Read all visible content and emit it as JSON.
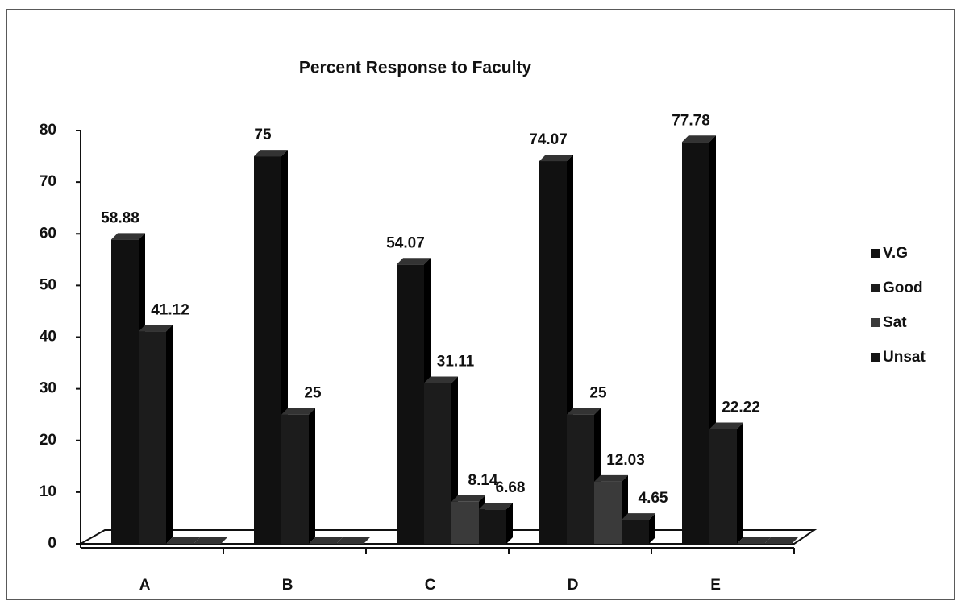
{
  "chart_data": {
    "type": "bar",
    "title": "Percent Response to Faculty",
    "categories": [
      "A",
      "B",
      "C",
      "D",
      "E"
    ],
    "series": [
      {
        "name": "V.G",
        "color": "#111111",
        "values": [
          58.88,
          75,
          54.07,
          74.07,
          77.78
        ]
      },
      {
        "name": "Good",
        "color": "#1c1c1c",
        "values": [
          41.12,
          25,
          31.11,
          25,
          22.22
        ]
      },
      {
        "name": "Sat",
        "color": "#3a3a3a",
        "values": [
          0,
          0,
          8.14,
          12.03,
          0
        ]
      },
      {
        "name": "Unsat",
        "color": "#151515",
        "values": [
          0,
          0,
          6.68,
          4.65,
          0
        ]
      }
    ],
    "ylim": [
      0,
      80
    ],
    "yticks": [
      0,
      10,
      20,
      30,
      40,
      50,
      60,
      70,
      80
    ],
    "grid": false,
    "legend": "right"
  }
}
